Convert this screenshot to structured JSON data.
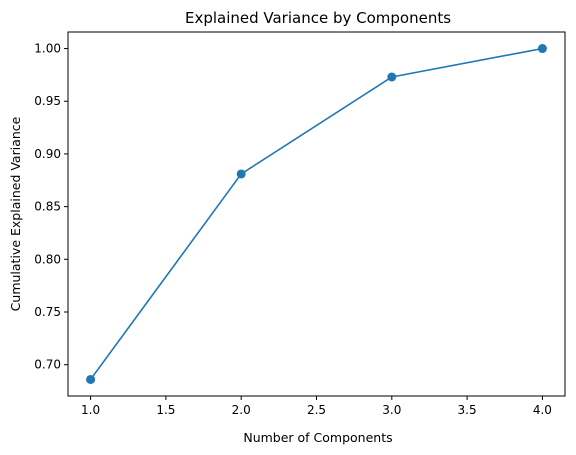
{
  "chart_data": {
    "type": "line",
    "title": "Explained Variance by Components",
    "xlabel": "Number of Components",
    "ylabel": "Cumulative Explained Variance",
    "x": [
      1,
      2,
      3,
      4
    ],
    "series": [
      {
        "values": [
          0.686,
          0.881,
          0.973,
          1.0
        ],
        "color": "#1f77b4",
        "marker": "circle"
      }
    ],
    "xlim": [
      0.85,
      4.15
    ],
    "ylim": [
      0.6703,
      1.0157
    ],
    "xticks": [
      1.0,
      1.5,
      2.0,
      2.5,
      3.0,
      3.5,
      4.0
    ],
    "xtick_labels": [
      "1.0",
      "1.5",
      "2.0",
      "2.5",
      "3.0",
      "3.5",
      "4.0"
    ],
    "yticks": [
      0.7,
      0.75,
      0.8,
      0.85,
      0.9,
      0.95,
      1.0
    ],
    "ytick_labels": [
      "0.70",
      "0.75",
      "0.80",
      "0.85",
      "0.90",
      "0.95",
      "1.00"
    ],
    "grid": false,
    "legend": "none"
  }
}
